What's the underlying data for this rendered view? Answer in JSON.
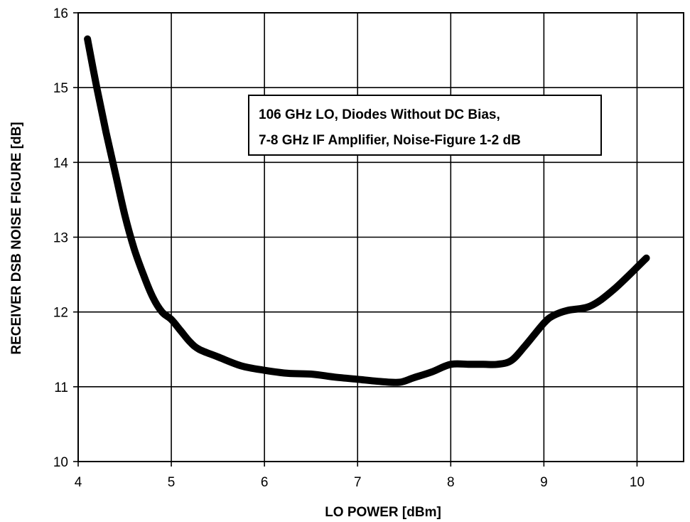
{
  "chart_data": {
    "type": "line",
    "title": "",
    "xlabel": "LO POWER [dBm]",
    "ylabel": "RECEIVER DSB NOISE FIGURE [dB]",
    "xlim": [
      4,
      10.5
    ],
    "ylim": [
      10,
      16
    ],
    "x_ticks": [
      "4",
      "5",
      "6",
      "7",
      "8",
      "9",
      "10"
    ],
    "y_ticks": [
      "10",
      "11",
      "12",
      "13",
      "14",
      "15",
      "16"
    ],
    "grid": "on",
    "legend": "none",
    "annotation": {
      "line1": "106 GHz LO, Diodes Without DC Bias,",
      "line2": "7-8 GHz IF Amplifier, Noise-Figure 1-2 dB"
    },
    "series": [
      {
        "color": "#000000",
        "x": [
          4.1,
          4.2,
          4.3,
          4.4,
          4.5,
          4.6,
          4.7,
          4.8,
          4.9,
          5.0,
          5.1,
          5.2,
          5.3,
          5.5,
          5.75,
          6.0,
          6.25,
          6.5,
          6.75,
          7.0,
          7.25,
          7.45,
          7.6,
          7.8,
          8.0,
          8.2,
          8.35,
          8.5,
          8.65,
          8.8,
          9.0,
          9.1,
          9.25,
          9.5,
          9.75,
          10.1
        ],
        "y": [
          15.65,
          15.0,
          14.4,
          13.85,
          13.3,
          12.85,
          12.5,
          12.2,
          12.0,
          11.9,
          11.75,
          11.6,
          11.5,
          11.4,
          11.28,
          11.22,
          11.18,
          11.17,
          11.13,
          11.1,
          11.07,
          11.06,
          11.12,
          11.2,
          11.3,
          11.3,
          11.3,
          11.3,
          11.35,
          11.55,
          11.85,
          11.95,
          12.02,
          12.08,
          12.3,
          12.72
        ]
      }
    ]
  }
}
